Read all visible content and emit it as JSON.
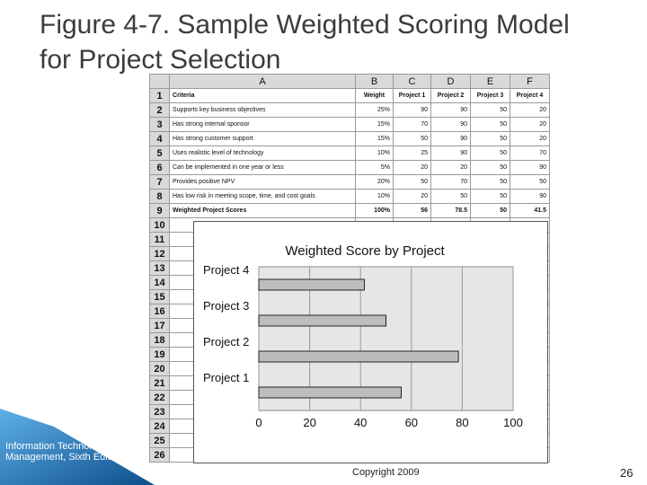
{
  "title": "Figure 4-7. Sample Weighted Scoring Model for Project Selection",
  "sheet": {
    "columns": [
      "A",
      "B",
      "C",
      "D",
      "E",
      "F"
    ],
    "rows": [
      {
        "n": "1",
        "a": "Criteria",
        "b": "Weight",
        "c": "Project 1",
        "d": "Project 2",
        "e": "Project 3",
        "f": "Project 4"
      },
      {
        "n": "2",
        "a": "Supports key business objectives",
        "b": "25%",
        "c": "90",
        "d": "90",
        "e": "50",
        "f": "20"
      },
      {
        "n": "3",
        "a": "Has strong internal sponsor",
        "b": "15%",
        "c": "70",
        "d": "90",
        "e": "50",
        "f": "20"
      },
      {
        "n": "4",
        "a": "Has strong customer support",
        "b": "15%",
        "c": "50",
        "d": "90",
        "e": "50",
        "f": "20"
      },
      {
        "n": "5",
        "a": "Uses realistic level of technology",
        "b": "10%",
        "c": "25",
        "d": "90",
        "e": "50",
        "f": "70"
      },
      {
        "n": "6",
        "a": "Can be implemented in one year or less",
        "b": "5%",
        "c": "20",
        "d": "20",
        "e": "50",
        "f": "90"
      },
      {
        "n": "7",
        "a": "Provides positive NPV",
        "b": "20%",
        "c": "50",
        "d": "70",
        "e": "50",
        "f": "50"
      },
      {
        "n": "8",
        "a": "Has low risk in meeting scope, time, and cost goals",
        "b": "10%",
        "c": "20",
        "d": "50",
        "e": "50",
        "f": "90"
      },
      {
        "n": "9",
        "a": "Weighted Project Scores",
        "b": "100%",
        "c": "56",
        "d": "78.5",
        "e": "50",
        "f": "41.5"
      },
      {
        "n": "10",
        "a": "",
        "b": "",
        "c": "",
        "d": "",
        "e": "",
        "f": ""
      },
      {
        "n": "11",
        "a": "",
        "b": "",
        "c": "",
        "d": "",
        "e": "",
        "f": ""
      },
      {
        "n": "12",
        "a": "",
        "b": "",
        "c": "",
        "d": "",
        "e": "",
        "f": ""
      },
      {
        "n": "13",
        "a": "",
        "b": "",
        "c": "",
        "d": "",
        "e": "",
        "f": ""
      },
      {
        "n": "14",
        "a": "",
        "b": "",
        "c": "",
        "d": "",
        "e": "",
        "f": ""
      },
      {
        "n": "15",
        "a": "",
        "b": "",
        "c": "",
        "d": "",
        "e": "",
        "f": ""
      },
      {
        "n": "16",
        "a": "",
        "b": "",
        "c": "",
        "d": "",
        "e": "",
        "f": ""
      },
      {
        "n": "17",
        "a": "",
        "b": "",
        "c": "",
        "d": "",
        "e": "",
        "f": ""
      },
      {
        "n": "18",
        "a": "",
        "b": "",
        "c": "",
        "d": "",
        "e": "",
        "f": ""
      },
      {
        "n": "19",
        "a": "",
        "b": "",
        "c": "",
        "d": "",
        "e": "",
        "f": ""
      },
      {
        "n": "20",
        "a": "",
        "b": "",
        "c": "",
        "d": "",
        "e": "",
        "f": ""
      },
      {
        "n": "21",
        "a": "",
        "b": "",
        "c": "",
        "d": "",
        "e": "",
        "f": ""
      },
      {
        "n": "22",
        "a": "",
        "b": "",
        "c": "",
        "d": "",
        "e": "",
        "f": ""
      },
      {
        "n": "23",
        "a": "",
        "b": "",
        "c": "",
        "d": "",
        "e": "",
        "f": ""
      },
      {
        "n": "24",
        "a": "",
        "b": "",
        "c": "",
        "d": "",
        "e": "",
        "f": ""
      },
      {
        "n": "25",
        "a": "",
        "b": "",
        "c": "",
        "d": "",
        "e": "",
        "f": ""
      },
      {
        "n": "26",
        "a": "",
        "b": "",
        "c": "",
        "d": "",
        "e": "",
        "f": ""
      }
    ]
  },
  "chart_data": {
    "type": "bar",
    "orientation": "horizontal",
    "title": "Weighted Score by Project",
    "categories": [
      "Project 4",
      "Project 3",
      "Project 2",
      "Project 1"
    ],
    "values": [
      41.5,
      50,
      78.5,
      56
    ],
    "xlim": [
      0,
      100
    ],
    "xticks": [
      0,
      20,
      40,
      60,
      80,
      100
    ],
    "grid": true,
    "bar_color": "#bdbdbd",
    "plot_background": "#e6e6e6"
  },
  "footer": {
    "left_text": "Information Technology Project Management, Sixth Edition",
    "copyright": "Copyright 2009",
    "page_number": "26",
    "accent_color": "#1f78b4"
  }
}
